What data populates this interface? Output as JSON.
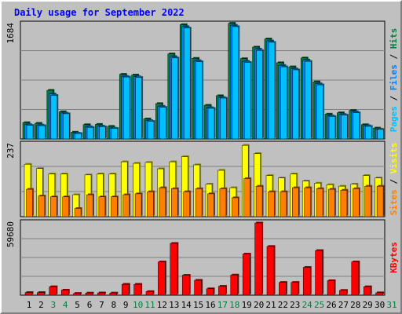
{
  "title": "Daily usage for September 2022",
  "colors": {
    "title": "#0000ff",
    "background": "#c0c0c0",
    "hits": "#008040",
    "files": "#0080ff",
    "pages": "#00c0ff",
    "visits": "#ffff00",
    "sites": "#ff8000",
    "kbytes": "#ff0000",
    "weekday_label": "#000000",
    "weekend_label": "#008040"
  },
  "chart_data": [
    {
      "type": "bar",
      "panel": "hits-files-pages",
      "ymax_label": "1684",
      "ylim": [
        0,
        1684
      ],
      "x": [
        1,
        2,
        3,
        4,
        5,
        6,
        7,
        8,
        9,
        10,
        11,
        12,
        13,
        14,
        15,
        16,
        17,
        18,
        19,
        20,
        21,
        22,
        23,
        24,
        25,
        26,
        27,
        28,
        29,
        30
      ],
      "weekend_days": [
        3,
        4,
        10,
        11,
        17,
        18,
        24,
        25,
        31
      ],
      "grid": true,
      "series": [
        {
          "name": "Hits",
          "values": [
            240,
            230,
            715,
            400,
            100,
            210,
            215,
            185,
            950,
            940,
            295,
            520,
            1250,
            1680,
            1185,
            495,
            635,
            1700,
            1180,
            1350,
            1470,
            1120,
            1060,
            1190,
            840,
            365,
            385,
            420,
            210,
            160
          ]
        },
        {
          "name": "Files",
          "values": [
            210,
            205,
            660,
            380,
            85,
            180,
            190,
            160,
            920,
            915,
            270,
            480,
            1210,
            1650,
            1150,
            460,
            610,
            1670,
            1140,
            1320,
            1440,
            1080,
            1030,
            1160,
            810,
            340,
            360,
            400,
            195,
            145
          ]
        },
        {
          "name": "Pages",
          "values": [
            200,
            195,
            640,
            370,
            80,
            170,
            180,
            155,
            910,
            905,
            260,
            465,
            1190,
            1630,
            1135,
            450,
            600,
            1650,
            1125,
            1300,
            1420,
            1060,
            1015,
            1140,
            795,
            330,
            350,
            385,
            185,
            140
          ]
        }
      ]
    },
    {
      "type": "bar",
      "panel": "visits-sites",
      "ymax_label": "237",
      "ylim": [
        0,
        237
      ],
      "x": [
        1,
        2,
        3,
        4,
        5,
        6,
        7,
        8,
        9,
        10,
        11,
        12,
        13,
        14,
        15,
        16,
        17,
        18,
        19,
        20,
        21,
        22,
        23,
        24,
        25,
        26,
        27,
        28,
        29,
        30
      ],
      "weekend_days": [
        3,
        4,
        10,
        11,
        17,
        18,
        24,
        25,
        31
      ],
      "grid": true,
      "series": [
        {
          "name": "Visits",
          "values": [
            172,
            158,
            140,
            140,
            72,
            137,
            140,
            140,
            180,
            175,
            178,
            157,
            180,
            197,
            170,
            107,
            152,
            95,
            234,
            207,
            135,
            127,
            140,
            117,
            110,
            105,
            100,
            107,
            135,
            127
          ]
        },
        {
          "name": "Sites",
          "values": [
            90,
            68,
            65,
            65,
            27,
            72,
            65,
            65,
            72,
            75,
            82,
            95,
            92,
            82,
            92,
            75,
            92,
            62,
            125,
            100,
            82,
            82,
            95,
            95,
            92,
            90,
            87,
            92,
            100,
            100
          ]
        }
      ]
    },
    {
      "type": "bar",
      "panel": "kbytes",
      "ymax_label": "59680",
      "ylim": [
        0,
        59680
      ],
      "x": [
        1,
        2,
        3,
        4,
        5,
        6,
        7,
        8,
        9,
        10,
        11,
        12,
        13,
        14,
        15,
        16,
        17,
        18,
        19,
        20,
        21,
        22,
        23,
        24,
        25,
        26,
        27,
        28,
        29,
        30
      ],
      "weekend_days": [
        3,
        4,
        10,
        11,
        17,
        18,
        24,
        25,
        31
      ],
      "grid": true,
      "series": [
        {
          "name": "KBytes",
          "values": [
            2200,
            2200,
            7000,
            4200,
            1500,
            1800,
            1900,
            1800,
            9000,
            9000,
            3000,
            27500,
            42800,
            16500,
            12300,
            5300,
            7400,
            16700,
            34000,
            59680,
            40300,
            10600,
            10600,
            23000,
            36900,
            12000,
            4000,
            27500,
            7000,
            2000
          ]
        }
      ]
    }
  ],
  "side_labels": {
    "panel1": [
      {
        "text": "Pages",
        "color": "#00c0ff"
      },
      {
        "text": " / ",
        "color": "#000000"
      },
      {
        "text": "Files",
        "color": "#0080ff"
      },
      {
        "text": " / ",
        "color": "#000000"
      },
      {
        "text": "Hits",
        "color": "#008040"
      }
    ],
    "panel2": [
      {
        "text": "Sites",
        "color": "#ff8000"
      },
      {
        "text": " / ",
        "color": "#000000"
      },
      {
        "text": "Visits",
        "color": "#ffff00"
      }
    ],
    "panel3": [
      {
        "text": "KBytes",
        "color": "#ff0000"
      }
    ]
  },
  "days": [
    "1",
    "2",
    "3",
    "4",
    "5",
    "6",
    "7",
    "8",
    "9",
    "10",
    "11",
    "12",
    "13",
    "14",
    "15",
    "16",
    "17",
    "18",
    "19",
    "20",
    "21",
    "22",
    "23",
    "24",
    "25",
    "26",
    "27",
    "28",
    "29",
    "30",
    "31"
  ]
}
